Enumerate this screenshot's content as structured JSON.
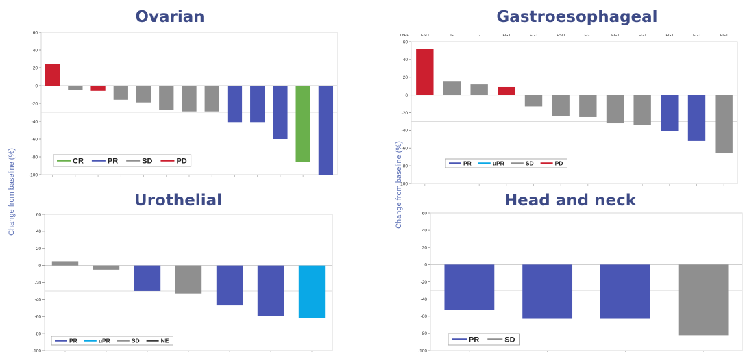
{
  "page": {
    "y_axis_label": "Change from baseline (%)"
  },
  "colors": {
    "CR": "#6ab04c",
    "PR": "#4a56b4",
    "uPR": "#0aa8e6",
    "SD": "#8f8f8f",
    "PD": "#cc1f2f",
    "NE": "#3a3a3a"
  },
  "chart_data": [
    {
      "id": "ovarian",
      "type": "bar",
      "title": "Ovarian",
      "ylim": [
        -100,
        60
      ],
      "yticks": [
        60,
        40,
        20,
        0,
        -20,
        -40,
        -60,
        -80,
        -100
      ],
      "reference_line": -30,
      "values": [
        24,
        -5,
        -6,
        -16,
        -19,
        -27,
        -29,
        -29,
        -41,
        -41,
        -60,
        -86,
        -100
      ],
      "responses": [
        "PD",
        "SD",
        "PD",
        "SD",
        "SD",
        "SD",
        "SD",
        "SD",
        "PR",
        "PR",
        "PR",
        "CR",
        "PR"
      ],
      "legend": [
        "CR",
        "PR",
        "SD",
        "PD"
      ]
    },
    {
      "id": "gastro",
      "type": "bar",
      "title": "Gastroesophageal",
      "ylim": [
        -100,
        60
      ],
      "yticks": [
        60,
        40,
        20,
        0,
        -20,
        -40,
        -60,
        -80,
        -100
      ],
      "reference_line": -30,
      "type_label": "TYPE",
      "categories": [
        "ESO",
        "G",
        "G",
        "EGJ",
        "EGJ",
        "ESO",
        "EGJ",
        "EGJ",
        "EGJ",
        "EGJ",
        "EGJ",
        "EGJ"
      ],
      "values": [
        52,
        15,
        12,
        9,
        -13,
        -24,
        -25,
        -32,
        -34,
        -41,
        -52,
        -66
      ],
      "responses": [
        "PD",
        "SD",
        "SD",
        "PD",
        "SD",
        "SD",
        "SD",
        "SD",
        "SD",
        "PR",
        "PR",
        "SD"
      ],
      "legend": [
        "PR",
        "uPR",
        "SD",
        "PD"
      ]
    },
    {
      "id": "urothelial",
      "type": "bar",
      "title": "Urothelial",
      "ylim": [
        -100,
        60
      ],
      "yticks": [
        60,
        40,
        20,
        0,
        -20,
        -40,
        -60,
        -80,
        -100
      ],
      "reference_line": -30,
      "values": [
        5,
        -5,
        -30,
        -33,
        -47,
        -59,
        -62
      ],
      "responses": [
        "SD",
        "SD",
        "PR",
        "SD",
        "PR",
        "PR",
        "uPR"
      ],
      "legend": [
        "PR",
        "uPR",
        "SD",
        "NE"
      ]
    },
    {
      "id": "headneck",
      "type": "bar",
      "title": "Head and neck",
      "ylim": [
        -100,
        60
      ],
      "yticks": [
        60,
        40,
        20,
        0,
        -20,
        -40,
        -60,
        -80,
        -100
      ],
      "reference_line": -30,
      "values": [
        -53,
        -63,
        -63,
        -82
      ],
      "responses": [
        "PR",
        "PR",
        "PR",
        "SD"
      ],
      "legend": [
        "PR",
        "SD"
      ]
    }
  ]
}
